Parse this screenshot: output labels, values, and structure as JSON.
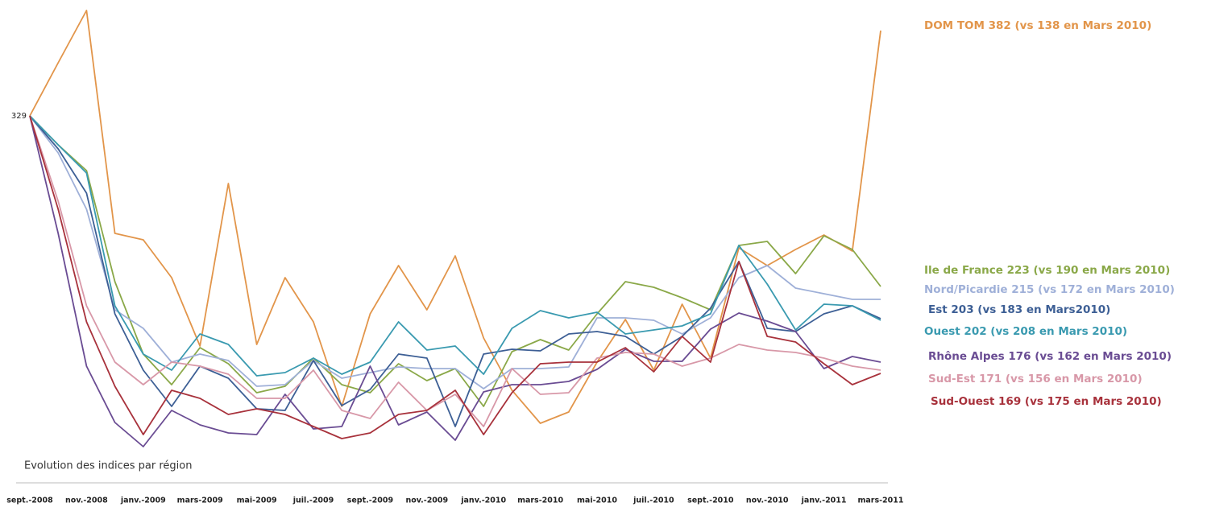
{
  "chart_data": {
    "type": "line",
    "subtitle": "Evolution des indices par région",
    "categories": [
      "sept.-2008",
      null,
      "nov.-2008",
      null,
      "janv.-2009",
      null,
      "mars-2009",
      null,
      "mai-2009",
      null,
      "juil.-2009",
      null,
      "sept.-2009",
      null,
      "nov.-2009",
      null,
      "janv.-2010",
      null,
      "mars-2010",
      null,
      "mai-2010",
      null,
      "juil.-2010",
      null,
      "sept.-2010",
      null,
      "nov.-2010",
      null,
      "janv.-2011",
      null,
      "mars-2011"
    ],
    "ylim": [
      100,
      400
    ],
    "series": [
      {
        "name": "DOM TOM 382 (vs 138 en Mars 2010)",
        "color": "#e2954a",
        "values": [
          329,
          362,
          394.5,
          256,
          252,
          228.5,
          186,
          287,
          187,
          228.5,
          201,
          148.5,
          206,
          236,
          208.5,
          242,
          191,
          158.5,
          138,
          145,
          176,
          202.5,
          171,
          212,
          178.5,
          247,
          236,
          246,
          255,
          245,
          382
        ]
      },
      {
        "name": "Ile de France 223 (vs 190 en Mars 2010)",
        "color": "#8aa848",
        "values": [
          329,
          311,
          295,
          226,
          181,
          162,
          185,
          175,
          157,
          161,
          178.5,
          162,
          157,
          175,
          164.5,
          172,
          148.5,
          182.5,
          190,
          183.5,
          206,
          226,
          222.5,
          216,
          208.5,
          248.5,
          251,
          231,
          254.5,
          246,
          223
        ]
      },
      {
        "name": "Nord/Picardie 215 (vs 172 en Mars 2010)",
        "color": "#9fb0d8",
        "values": [
          329,
          306,
          271,
          208.5,
          197,
          176,
          181,
          177,
          161,
          162,
          177,
          166,
          169.5,
          173,
          172,
          172,
          159.5,
          172,
          172,
          173,
          203.5,
          203.5,
          202,
          193.5,
          203.5,
          228.5,
          236,
          222,
          218.5,
          215,
          215
        ]
      },
      {
        "name": "Est 203 (vs 183 en Mars2010)",
        "color": "#3d5f95",
        "values": [
          329,
          308.5,
          281,
          206,
          171,
          148.5,
          173.5,
          166,
          147,
          146,
          177,
          149,
          159,
          181,
          178.5,
          136,
          181,
          184,
          183,
          193.5,
          195,
          192,
          181,
          192,
          209.5,
          238.5,
          197,
          195,
          206,
          211,
          203
        ]
      },
      {
        "name": "Ouest 202 (vs 208 en Mars 2010)",
        "color": "#3a9ab0",
        "values": [
          329,
          311,
          293.5,
          211,
          181,
          171,
          193.5,
          187,
          167.5,
          169.5,
          178.5,
          168.5,
          176,
          201,
          183.5,
          186,
          168.5,
          197,
          208,
          203.5,
          207,
          193.5,
          196,
          198.5,
          206,
          248.5,
          224.5,
          196,
          212,
          211,
          202
        ]
      },
      {
        "name": "Rhône Alpes 176 (vs 162 en Mars 2010)",
        "color": "#6a4c93",
        "values": [
          329,
          256,
          173.5,
          138.5,
          123.5,
          146,
          137,
          132,
          131,
          156,
          134.5,
          136,
          173.5,
          137,
          145,
          127.5,
          157.5,
          162,
          162,
          164,
          171.5,
          184,
          176.5,
          176.5,
          196.5,
          206.5,
          201.5,
          195,
          172,
          179.5,
          176
        ]
      },
      {
        "name": "Sud-Est 171  (vs 156 en Mars 2010)",
        "color": "#d898a8",
        "values": [
          329,
          276,
          211,
          176,
          162,
          176,
          173.5,
          168.5,
          153.5,
          153.5,
          171,
          146,
          141,
          163.5,
          146,
          156,
          136,
          172,
          156,
          157,
          178.5,
          182,
          181,
          173.5,
          178.5,
          187,
          183.5,
          182,
          178.5,
          173.5,
          171
        ]
      },
      {
        "name": "Sud-Ouest 169 (vs 175 en Mars 2010)",
        "color": "#a8323c",
        "values": [
          329,
          271,
          201,
          161,
          131,
          158.5,
          153.5,
          143.5,
          147,
          143.5,
          136,
          128.5,
          132,
          143.5,
          146,
          158.5,
          131,
          157,
          175,
          176,
          176,
          185,
          170,
          192,
          176,
          238.5,
          192,
          188.5,
          175,
          162,
          169
        ]
      }
    ]
  }
}
